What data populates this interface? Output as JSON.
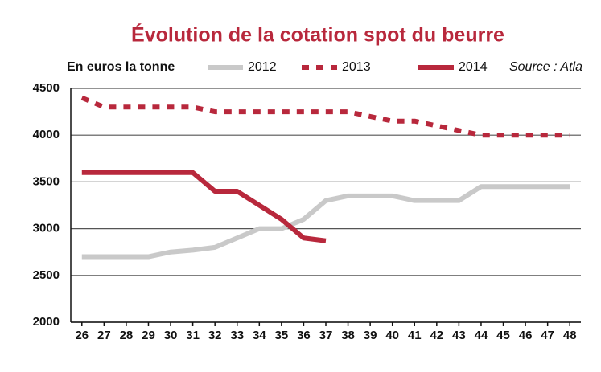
{
  "chart_data": {
    "type": "line",
    "title": "Évolution de la cotation spot du beurre",
    "subtitle": "En euros la tonne",
    "source": "Source : Atla",
    "x": [
      26,
      27,
      28,
      29,
      30,
      31,
      32,
      33,
      34,
      35,
      36,
      37,
      38,
      39,
      40,
      41,
      42,
      43,
      44,
      45,
      46,
      47,
      48
    ],
    "xlim": [
      25.5,
      48.5
    ],
    "xticks": [
      26,
      27,
      28,
      29,
      30,
      31,
      32,
      33,
      34,
      35,
      36,
      37,
      38,
      39,
      40,
      41,
      42,
      43,
      44,
      45,
      46,
      47,
      48
    ],
    "ylim": [
      2000,
      4500
    ],
    "yticks": [
      2000,
      2500,
      3000,
      3500,
      4000,
      4500
    ],
    "grid": true,
    "series": [
      {
        "name": "2012",
        "color": "#c9c9c9",
        "style": "solid",
        "values": [
          2700,
          2700,
          2700,
          2700,
          2750,
          2770,
          2800,
          2900,
          3000,
          3000,
          3100,
          3300,
          3350,
          3350,
          3350,
          3300,
          3300,
          3300,
          3450,
          3450,
          3450,
          3450,
          3450
        ]
      },
      {
        "name": "2013",
        "color": "#b8283c",
        "style": "dotted",
        "values": [
          4400,
          4300,
          4300,
          4300,
          4300,
          4300,
          4250,
          4250,
          4250,
          4250,
          4250,
          4250,
          4250,
          4200,
          4150,
          4150,
          4100,
          4050,
          4000,
          4000,
          4000,
          4000,
          4000
        ]
      },
      {
        "name": "2014",
        "color": "#b8283c",
        "style": "solid",
        "values": [
          3600,
          3600,
          3600,
          3600,
          3600,
          3600,
          3400,
          3400,
          3250,
          3100,
          2900,
          2870,
          null,
          null,
          null,
          null,
          null,
          null,
          null,
          null,
          null,
          null,
          null
        ]
      }
    ]
  }
}
